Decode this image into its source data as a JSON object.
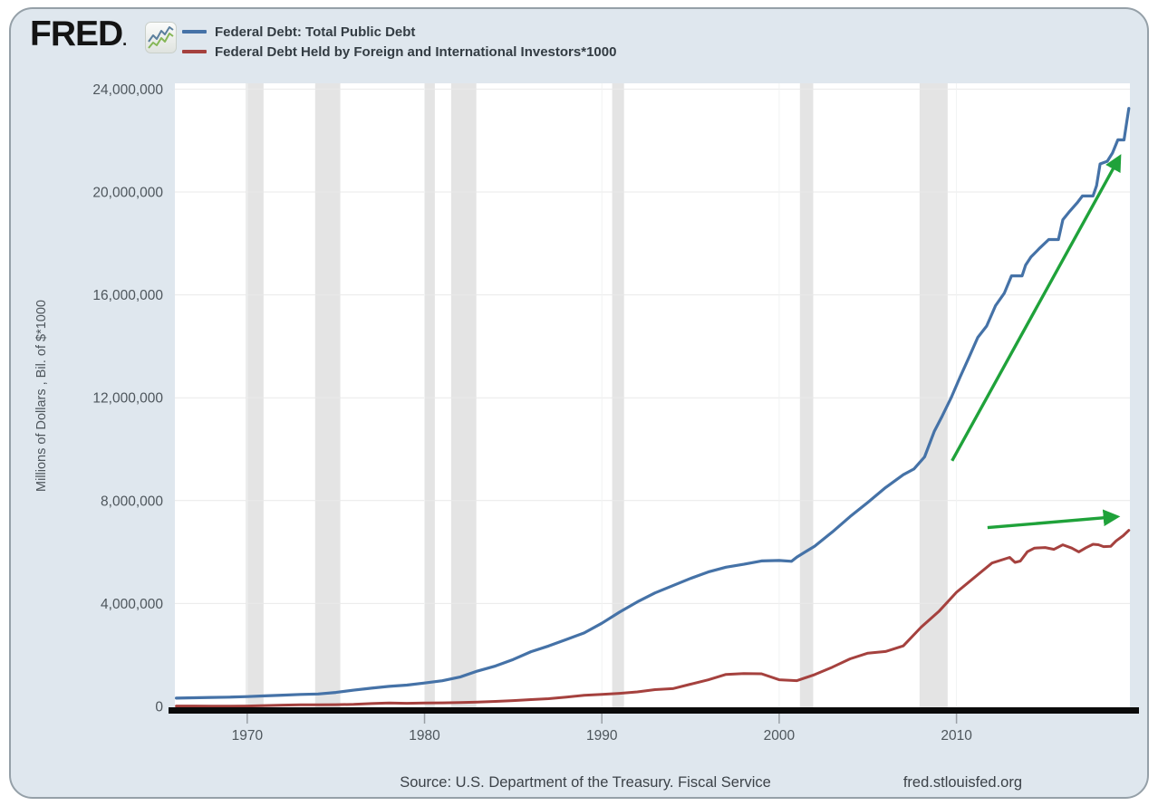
{
  "header": {
    "logo_text": "FRED",
    "legend": [
      {
        "label": "Federal Debt: Total Public Debt",
        "color": "#4572a7"
      },
      {
        "label": "Federal Debt Held by Foreign and International Investors*1000",
        "color": "#a5413e"
      }
    ]
  },
  "footer": {
    "source": "Source: U.S. Department of the Treasury. Fiscal Service",
    "site": "fred.stlouisfed.org"
  },
  "chart_data": {
    "type": "line",
    "title": "",
    "xlabel": "",
    "ylabel": "Millions of Dollars , Bil. of $*1000",
    "xlim": [
      1965.92,
      2019.78
    ],
    "ylim": [
      0,
      24225000
    ],
    "grid": true,
    "legend_position": "top-left",
    "x_ticks": [
      {
        "v": 1970,
        "label": "1970"
      },
      {
        "v": 1980,
        "label": "1980"
      },
      {
        "v": 1990,
        "label": "1990"
      },
      {
        "v": 2000,
        "label": "2000"
      },
      {
        "v": 2010,
        "label": "2010"
      }
    ],
    "y_ticks": [
      {
        "v": 0,
        "label": "0"
      },
      {
        "v": 4000000,
        "label": "4,000,000"
      },
      {
        "v": 8000000,
        "label": "8,000,000"
      },
      {
        "v": 12000000,
        "label": "12,000,000"
      },
      {
        "v": 16000000,
        "label": "16,000,000"
      },
      {
        "v": 20000000,
        "label": "20,000,000"
      },
      {
        "v": 24000000,
        "label": "24,000,000"
      }
    ],
    "recession_bands": [
      [
        1969.92,
        1970.92
      ],
      [
        1973.83,
        1975.25
      ],
      [
        1980.0,
        1980.58
      ],
      [
        1981.5,
        1982.92
      ],
      [
        1990.58,
        1991.25
      ],
      [
        2001.17,
        2001.92
      ],
      [
        2007.92,
        2009.5
      ]
    ],
    "series": [
      {
        "name": "Federal Debt: Total Public Debt",
        "color": "#4572a7",
        "width": 3.2,
        "points": [
          [
            1966,
            320000
          ],
          [
            1967,
            336000
          ],
          [
            1968,
            350000
          ],
          [
            1969,
            360000
          ],
          [
            1970,
            381000
          ],
          [
            1971,
            408000
          ],
          [
            1972,
            436000
          ],
          [
            1973,
            466000
          ],
          [
            1974,
            484000
          ],
          [
            1975,
            544000
          ],
          [
            1976,
            632000
          ],
          [
            1977,
            706000
          ],
          [
            1978,
            777000
          ],
          [
            1979,
            829000
          ],
          [
            1980,
            908000
          ],
          [
            1981,
            996000
          ],
          [
            1982,
            1142000
          ],
          [
            1983,
            1377000
          ],
          [
            1984,
            1572000
          ],
          [
            1985,
            1823000
          ],
          [
            1986,
            2125000
          ],
          [
            1987,
            2350000
          ],
          [
            1988,
            2602000
          ],
          [
            1989,
            2857000
          ],
          [
            1990,
            3233000
          ],
          [
            1991,
            3665000
          ],
          [
            1992,
            4065000
          ],
          [
            1993,
            4411000
          ],
          [
            1994,
            4693000
          ],
          [
            1995,
            4974000
          ],
          [
            1996,
            5225000
          ],
          [
            1997,
            5413000
          ],
          [
            1998,
            5526000
          ],
          [
            1999,
            5656000
          ],
          [
            2000,
            5674000
          ],
          [
            2000.7,
            5640000
          ],
          [
            2001,
            5807000
          ],
          [
            2002,
            6228000
          ],
          [
            2003,
            6783000
          ],
          [
            2004,
            7379000
          ],
          [
            2005,
            7933000
          ],
          [
            2006,
            8507000
          ],
          [
            2007,
            9008000
          ],
          [
            2007.6,
            9229000
          ],
          [
            2008.2,
            9700000
          ],
          [
            2008.75,
            10700000
          ],
          [
            2009.2,
            11300000
          ],
          [
            2009.7,
            12000000
          ],
          [
            2010.2,
            12800000
          ],
          [
            2010.7,
            13562000
          ],
          [
            2011.2,
            14344000
          ],
          [
            2011.7,
            14790000
          ],
          [
            2012.2,
            15582000
          ],
          [
            2012.7,
            16066000
          ],
          [
            2013.1,
            16738000
          ],
          [
            2013.7,
            16738000
          ],
          [
            2013.9,
            17156000
          ],
          [
            2014.2,
            17472000
          ],
          [
            2014.7,
            17824000
          ],
          [
            2015.2,
            18152000
          ],
          [
            2015.75,
            18151000
          ],
          [
            2016,
            18922000
          ],
          [
            2016.4,
            19265000
          ],
          [
            2016.8,
            19573000
          ],
          [
            2017.1,
            19846000
          ],
          [
            2017.7,
            19845000
          ],
          [
            2017.9,
            20245000
          ],
          [
            2018.1,
            21090000
          ],
          [
            2018.5,
            21195000
          ],
          [
            2018.8,
            21516000
          ],
          [
            2019.1,
            22028000
          ],
          [
            2019.45,
            22025000
          ],
          [
            2019.6,
            22719000
          ],
          [
            2019.72,
            23250000
          ]
        ]
      },
      {
        "name": "Federal Debt Held by Foreign and International Investors*1000",
        "color": "#a5413e",
        "width": 3.0,
        "values_scale": "billions*1000",
        "points": [
          [
            1966,
            12600
          ],
          [
            1967,
            13000
          ],
          [
            1968,
            12300
          ],
          [
            1969,
            11100
          ],
          [
            1970,
            14000
          ],
          [
            1971,
            31800
          ],
          [
            1972,
            49200
          ],
          [
            1973,
            59400
          ],
          [
            1974,
            64000
          ],
          [
            1975,
            66500
          ],
          [
            1976,
            78100
          ],
          [
            1977,
            109600
          ],
          [
            1978,
            133100
          ],
          [
            1979,
            119900
          ],
          [
            1980,
            129700
          ],
          [
            1981,
            136600
          ],
          [
            1982,
            149500
          ],
          [
            1983,
            166300
          ],
          [
            1984,
            192900
          ],
          [
            1985,
            224800
          ],
          [
            1986,
            265500
          ],
          [
            1987,
            299700
          ],
          [
            1988,
            362200
          ],
          [
            1989,
            428900
          ],
          [
            1990,
            463800
          ],
          [
            1991,
            506300
          ],
          [
            1992,
            563400
          ],
          [
            1993,
            650300
          ],
          [
            1994,
            689600
          ],
          [
            1995,
            862200
          ],
          [
            1996,
            1030800
          ],
          [
            1997,
            1241600
          ],
          [
            1998,
            1278700
          ],
          [
            1999,
            1268700
          ],
          [
            2000,
            1034200
          ],
          [
            2001,
            1000500
          ],
          [
            2002,
            1235600
          ],
          [
            2003,
            1523100
          ],
          [
            2004,
            1849300
          ],
          [
            2005,
            2070000
          ],
          [
            2006,
            2134000
          ],
          [
            2007,
            2353200
          ],
          [
            2008,
            3077200
          ],
          [
            2009,
            3685100
          ],
          [
            2010,
            4435600
          ],
          [
            2011,
            5006900
          ],
          [
            2012,
            5573800
          ],
          [
            2013,
            5792600
          ],
          [
            2013.3,
            5600000
          ],
          [
            2013.6,
            5653000
          ],
          [
            2014,
            6013000
          ],
          [
            2014.4,
            6156000
          ],
          [
            2015,
            6175000
          ],
          [
            2015.5,
            6105000
          ],
          [
            2016,
            6281000
          ],
          [
            2016.5,
            6155000
          ],
          [
            2016.9,
            6006000
          ],
          [
            2017.3,
            6170000
          ],
          [
            2017.7,
            6302000
          ],
          [
            2018,
            6285000
          ],
          [
            2018.3,
            6211000
          ],
          [
            2018.7,
            6226000
          ],
          [
            2019,
            6433000
          ],
          [
            2019.4,
            6636000
          ],
          [
            2019.72,
            6844000
          ]
        ]
      }
    ],
    "annotations": [
      {
        "type": "arrow",
        "color": "#1fa23a",
        "from": [
          2009.75,
          9550000
        ],
        "to": [
          2019.15,
          21300000
        ]
      },
      {
        "type": "arrow",
        "color": "#1fa23a",
        "from": [
          2011.75,
          6950000
        ],
        "to": [
          2018.95,
          7370000
        ]
      }
    ]
  }
}
